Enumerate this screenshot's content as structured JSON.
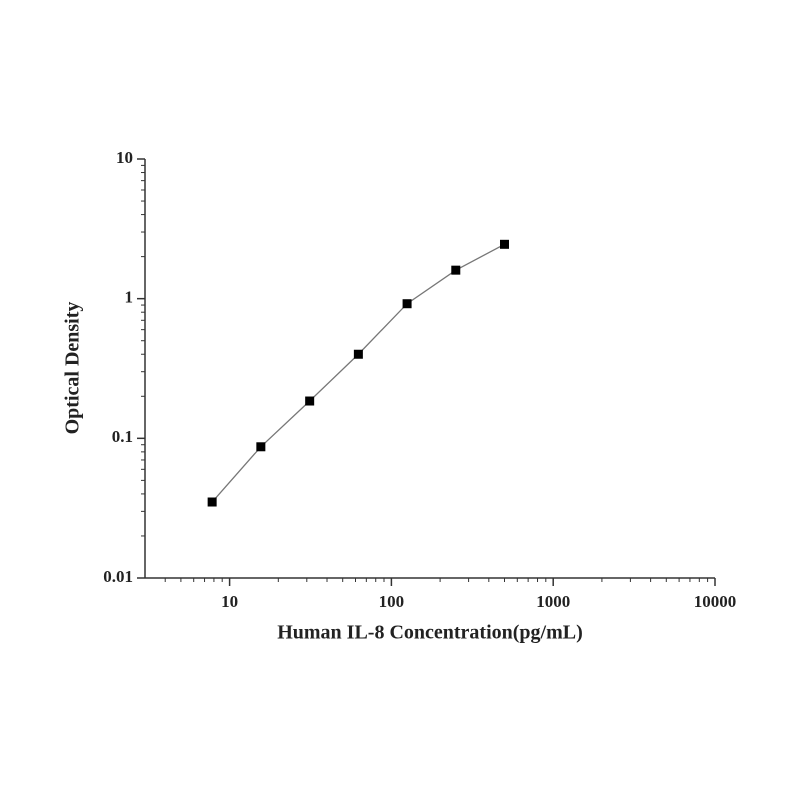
{
  "chart_data": {
    "type": "line",
    "x_label": "Human IL-8 Concentration(pg/mL)",
    "y_label": "Optical Density",
    "x": [
      7.8,
      15.6,
      31.25,
      62.5,
      125,
      250,
      500
    ],
    "series": [
      {
        "color": "#000000",
        "values": [
          0.035,
          0.087,
          0.185,
          0.4,
          0.92,
          1.6,
          2.45
        ]
      }
    ],
    "xlim": [
      3,
      10000
    ],
    "ylim": [
      0.01,
      10
    ],
    "xticks": [
      10,
      100,
      1000,
      10000
    ],
    "yticks": [
      0.01,
      0.1,
      1,
      10
    ],
    "xscale": "log",
    "yscale": "log",
    "grid": false
  }
}
